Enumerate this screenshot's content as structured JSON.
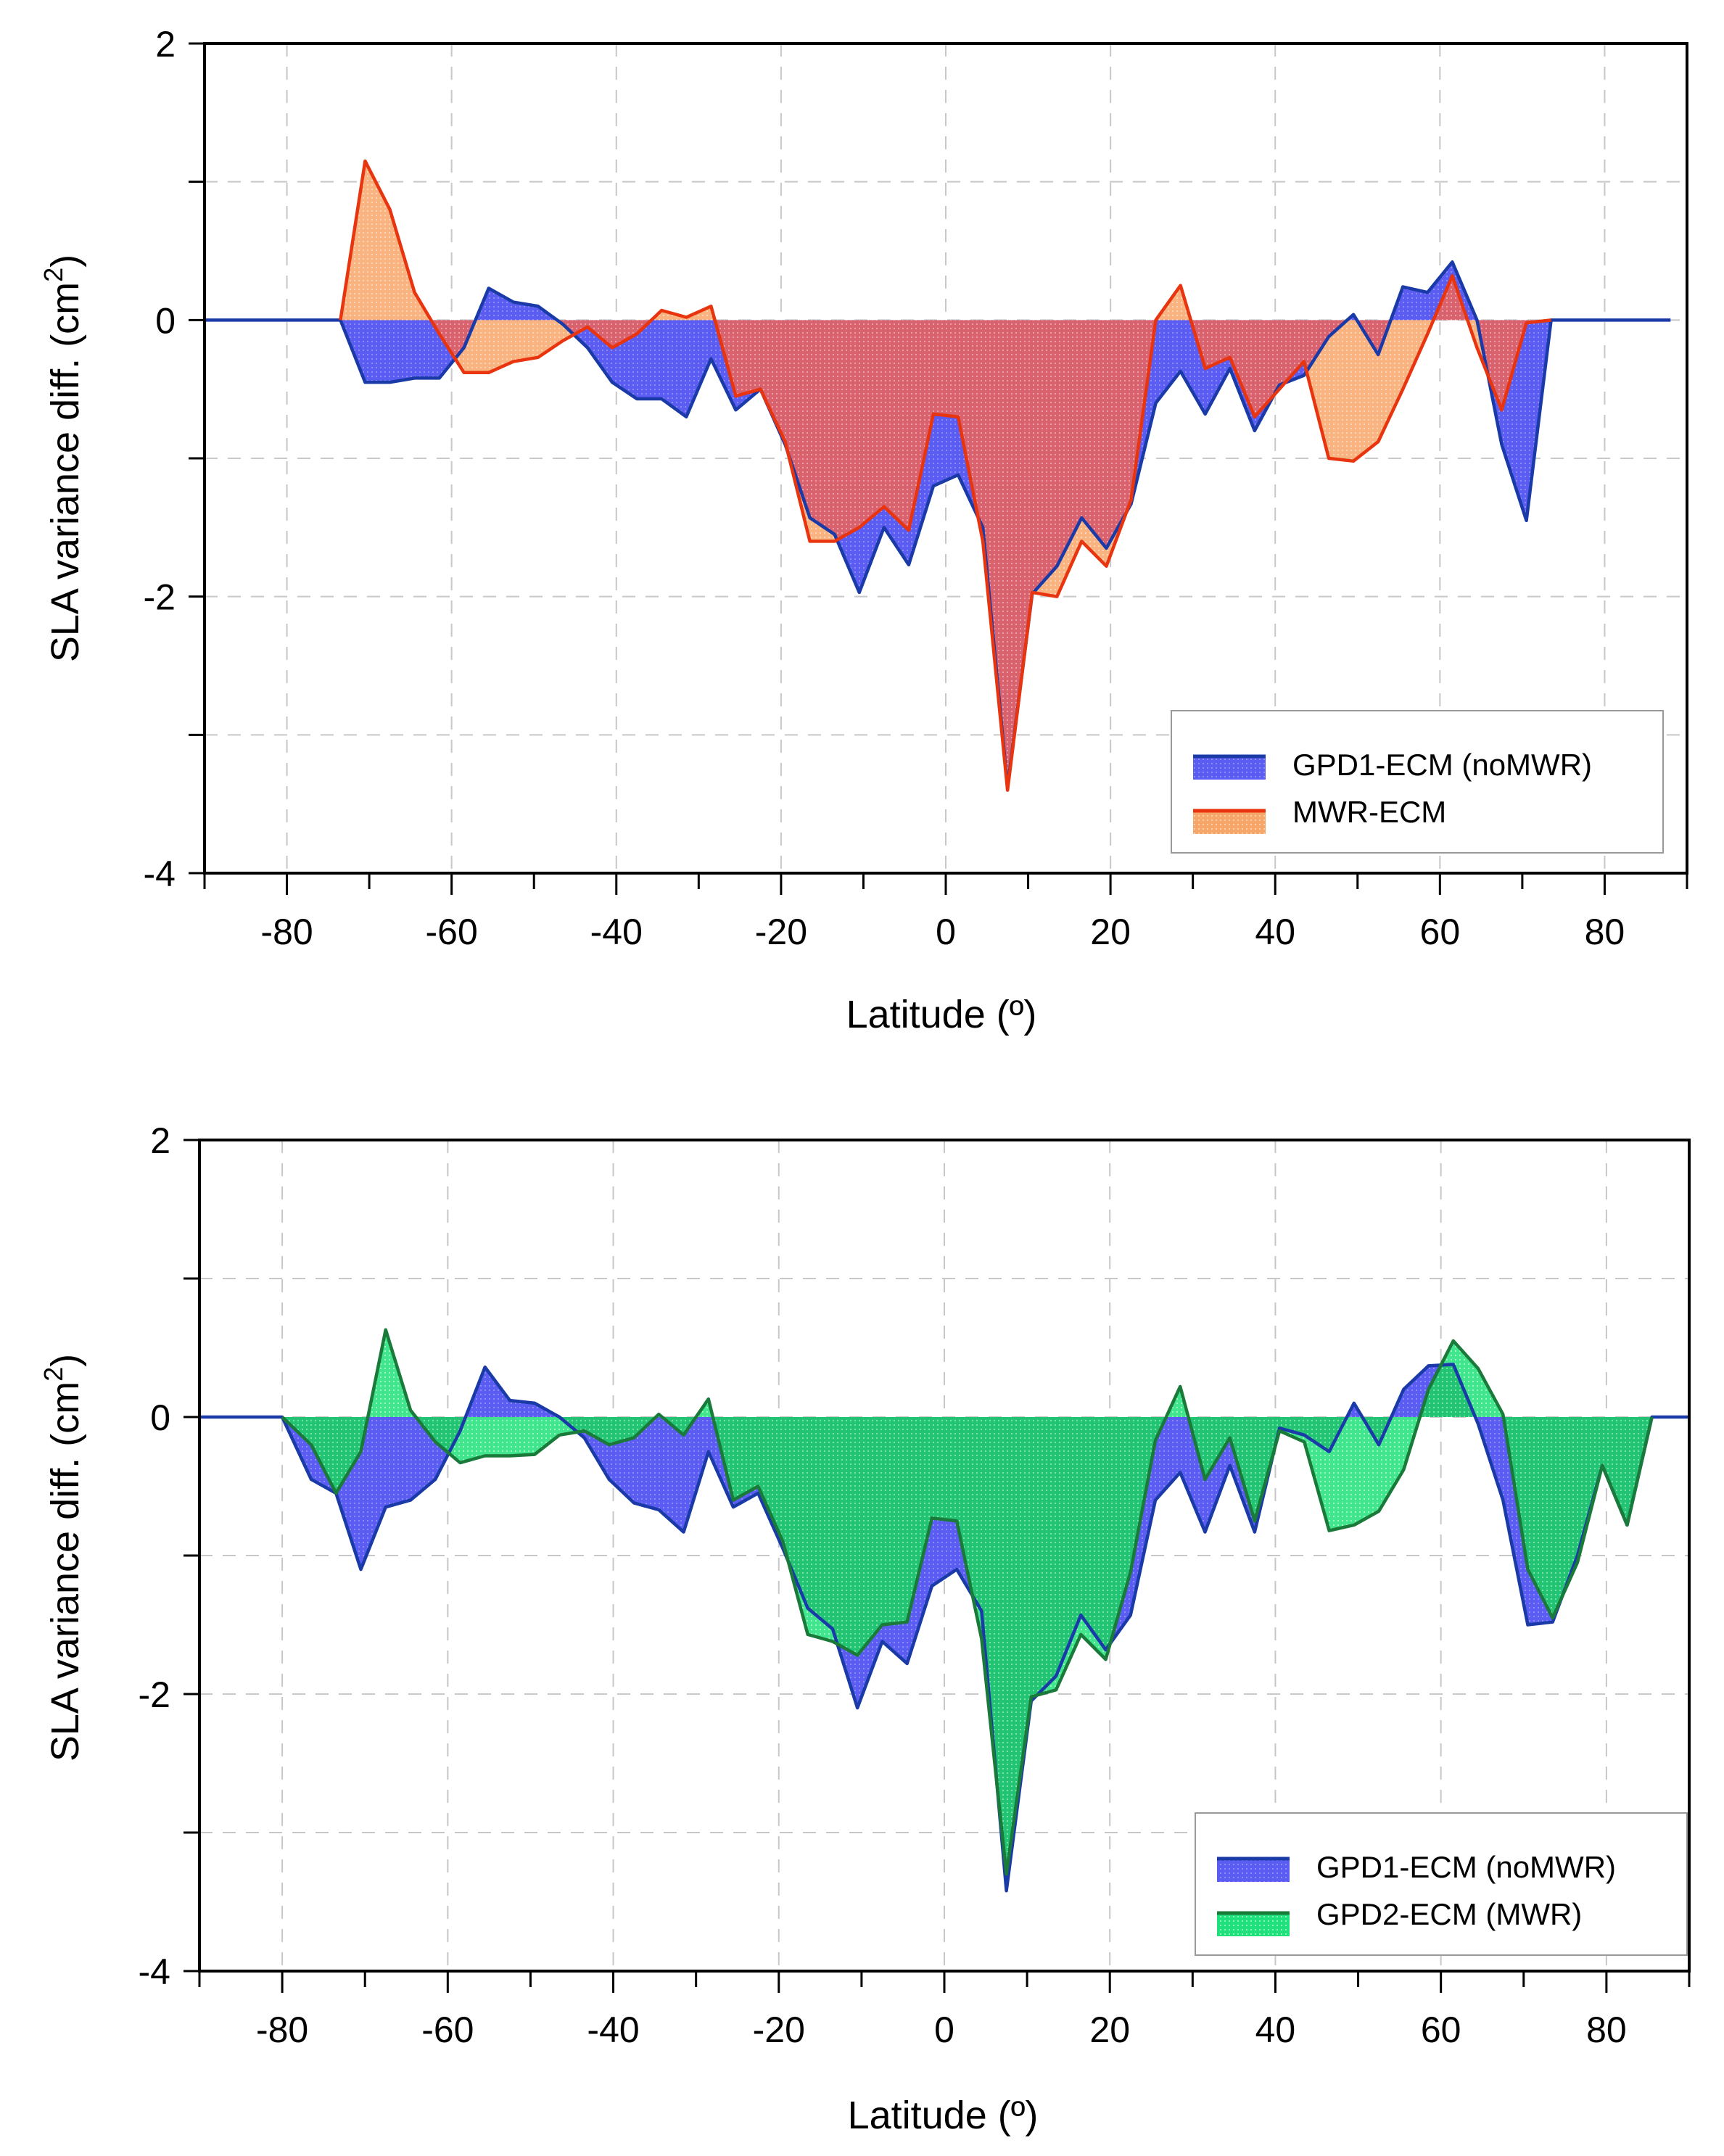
{
  "chart_data": [
    {
      "type": "area",
      "xlabel": "Latitude (º)",
      "ylabel_main": "SLA variance diff. (cm",
      "ylabel_sup": "2",
      "ylabel_tail": ")",
      "xlim": [
        -90,
        90
      ],
      "ylim": [
        -4,
        2
      ],
      "xticks": [
        -80,
        -60,
        -40,
        -20,
        0,
        20,
        40,
        60,
        80
      ],
      "xtick_labels": [
        "-80",
        "-60",
        "-40",
        "-20",
        "0",
        "20",
        "40",
        "60",
        "80"
      ],
      "yticks": [
        2,
        0,
        -2,
        -4
      ],
      "ytick_labels": [
        "2",
        "0",
        "-2",
        "-4"
      ],
      "grid": true,
      "legend_position": "bottom-right",
      "series": [
        {
          "name": "GPD1-ECM (noMWR)",
          "fill": "#5a5cf2",
          "line": "#1a3aa8",
          "x": [
            -90,
            -76,
            -73.5,
            -70.5,
            -67.5,
            -64.5,
            -61.5,
            -58.5,
            -55.5,
            -52.5,
            -49.5,
            -46.5,
            -43.5,
            -40.5,
            -37.5,
            -34.5,
            -31.5,
            -28.5,
            -25.5,
            -22.5,
            -19.5,
            -16.5,
            -13.5,
            -10.5,
            -7.5,
            -4.5,
            -1.5,
            1.5,
            4.5,
            7.5,
            10.5,
            13.5,
            16.5,
            19.5,
            22.5,
            25.5,
            28.5,
            31.5,
            34.5,
            37.5,
            40.5,
            43.5,
            46.5,
            49.5,
            52.5,
            55.5,
            58.5,
            61.5,
            64.5,
            67.5,
            70.5,
            73.5,
            76,
            88
          ],
          "y": [
            0,
            0,
            0,
            -0.45,
            -0.45,
            -0.42,
            -0.42,
            -0.2,
            0.23,
            0.13,
            0.1,
            -0.03,
            -0.2,
            -0.45,
            -0.57,
            -0.57,
            -0.7,
            -0.28,
            -0.65,
            -0.5,
            -0.9,
            -1.43,
            -1.55,
            -1.97,
            -1.5,
            -1.77,
            -1.2,
            -1.12,
            -1.5,
            -3.38,
            -1.98,
            -1.78,
            -1.43,
            -1.65,
            -1.33,
            -0.6,
            -0.37,
            -0.68,
            -0.35,
            -0.8,
            -0.47,
            -0.4,
            -0.12,
            0.04,
            -0.25,
            0.24,
            0.2,
            0.42,
            0,
            -0.9,
            -1.45,
            0,
            0,
            0
          ]
        },
        {
          "name": "MWR-ECM",
          "fill": "#f7a66a",
          "line": "#e8340f",
          "x": [
            -73.5,
            -70.5,
            -67.5,
            -64.5,
            -61.5,
            -58.5,
            -55.5,
            -52.5,
            -49.5,
            -46.5,
            -43.5,
            -40.5,
            -37.5,
            -34.5,
            -31.5,
            -28.5,
            -25.5,
            -22.5,
            -19.5,
            -16.5,
            -13.5,
            -10.5,
            -7.5,
            -4.5,
            -1.5,
            1.5,
            4.5,
            7.5,
            10.5,
            13.5,
            16.5,
            19.5,
            22.5,
            25.5,
            28.5,
            31.5,
            34.5,
            37.5,
            40.5,
            43.5,
            46.5,
            49.5,
            52.5,
            55.5,
            58.5,
            61.5,
            64.5,
            67.5,
            70.5,
            73.5
          ],
          "y": [
            0,
            1.15,
            0.8,
            0.2,
            -0.1,
            -0.38,
            -0.38,
            -0.3,
            -0.27,
            -0.15,
            -0.05,
            -0.2,
            -0.1,
            0.07,
            0.02,
            0.1,
            -0.55,
            -0.5,
            -0.88,
            -1.6,
            -1.6,
            -1.5,
            -1.35,
            -1.52,
            -0.68,
            -0.7,
            -1.6,
            -3.4,
            -1.97,
            -2,
            -1.6,
            -1.78,
            -1.3,
            0,
            0.25,
            -0.35,
            -0.27,
            -0.7,
            -0.5,
            -0.3,
            -1,
            -1.02,
            -0.88,
            -0.5,
            -0.1,
            0.32,
            -0.2,
            -0.65,
            -0.02,
            0
          ]
        }
      ]
    },
    {
      "type": "area",
      "xlabel": "Latitude (º)",
      "ylabel_main": "SLA variance diff. (cm",
      "ylabel_sup": "2",
      "ylabel_tail": ")",
      "xlim": [
        -90,
        90
      ],
      "ylim": [
        -4,
        2
      ],
      "xticks": [
        -80,
        -60,
        -40,
        -20,
        0,
        20,
        40,
        60,
        80
      ],
      "xtick_labels": [
        "-80",
        "-60",
        "-40",
        "-20",
        "0",
        "20",
        "40",
        "60",
        "80"
      ],
      "yticks": [
        2,
        0,
        -2,
        -4
      ],
      "ytick_labels": [
        "2",
        "0",
        "-2",
        "-4"
      ],
      "grid": true,
      "legend_position": "bottom-right",
      "series": [
        {
          "name": "GPD1-ECM (noMWR)",
          "fill": "#5a5cf2",
          "line": "#1a3aa8",
          "x": [
            -90,
            -80,
            -76.5,
            -73.5,
            -70.5,
            -67.5,
            -64.5,
            -61.5,
            -58.5,
            -55.5,
            -52.5,
            -49.5,
            -46.5,
            -43.5,
            -40.5,
            -37.5,
            -34.5,
            -31.5,
            -28.5,
            -25.5,
            -22.5,
            -19.5,
            -16.5,
            -13.5,
            -10.5,
            -7.5,
            -4.5,
            -1.5,
            1.5,
            4.5,
            7.5,
            10.5,
            13.5,
            16.5,
            19.5,
            22.5,
            25.5,
            28.5,
            31.5,
            34.5,
            37.5,
            40.5,
            43.5,
            46.5,
            49.5,
            52.5,
            55.5,
            58.5,
            61.5,
            64.5,
            67.5,
            70.5,
            73.5,
            76.5,
            79.5,
            82.5,
            85.5,
            90
          ],
          "y": [
            0,
            0,
            -0.45,
            -0.55,
            -1.1,
            -0.65,
            -0.6,
            -0.45,
            -0.1,
            0.36,
            0.12,
            0.1,
            0,
            -0.15,
            -0.45,
            -0.62,
            -0.67,
            -0.83,
            -0.25,
            -0.65,
            -0.55,
            -0.95,
            -1.38,
            -1.53,
            -2.1,
            -1.62,
            -1.78,
            -1.22,
            -1.1,
            -1.4,
            -3.42,
            -2.05,
            -1.87,
            -1.43,
            -1.68,
            -1.43,
            -0.6,
            -0.4,
            -0.83,
            -0.35,
            -0.83,
            -0.08,
            -0.13,
            -0.25,
            0.1,
            -0.2,
            0.2,
            0.37,
            0.38,
            -0.05,
            -0.6,
            -1.5,
            -1.48,
            -1,
            -0.35,
            -0.78,
            0,
            0
          ]
        },
        {
          "name": "GPD2-ECM (MWR)",
          "fill": "#1fe07a",
          "line": "#1a7a3a",
          "x": [
            -80,
            -76.5,
            -73.5,
            -70.5,
            -67.5,
            -64.5,
            -61.5,
            -58.5,
            -55.5,
            -52.5,
            -49.5,
            -46.5,
            -43.5,
            -40.5,
            -37.5,
            -34.5,
            -31.5,
            -28.5,
            -25.5,
            -22.5,
            -19.5,
            -16.5,
            -13.5,
            -10.5,
            -7.5,
            -4.5,
            -1.5,
            1.5,
            4.5,
            7.5,
            10.5,
            13.5,
            16.5,
            19.5,
            22.5,
            25.5,
            28.5,
            31.5,
            34.5,
            37.5,
            40.5,
            43.5,
            46.5,
            49.5,
            52.5,
            55.5,
            58.5,
            61.5,
            64.5,
            67.5,
            70.5,
            73.5,
            76.5,
            79.5,
            82.5,
            85.5
          ],
          "y": [
            0,
            -0.2,
            -0.55,
            -0.25,
            0.63,
            0.05,
            -0.18,
            -0.33,
            -0.28,
            -0.28,
            -0.27,
            -0.13,
            -0.1,
            -0.2,
            -0.15,
            0.02,
            -0.13,
            0.13,
            -0.6,
            -0.5,
            -0.9,
            -1.57,
            -1.62,
            -1.72,
            -1.5,
            -1.48,
            -0.73,
            -0.75,
            -1.6,
            -3.3,
            -2.02,
            -1.97,
            -1.57,
            -1.75,
            -1.12,
            -0.17,
            0.22,
            -0.45,
            -0.15,
            -0.75,
            -0.1,
            -0.18,
            -0.82,
            -0.78,
            -0.68,
            -0.38,
            0.2,
            0.55,
            0.35,
            0.02,
            -1.1,
            -1.45,
            -1.05,
            -0.35,
            -0.78,
            0
          ]
        }
      ]
    }
  ]
}
